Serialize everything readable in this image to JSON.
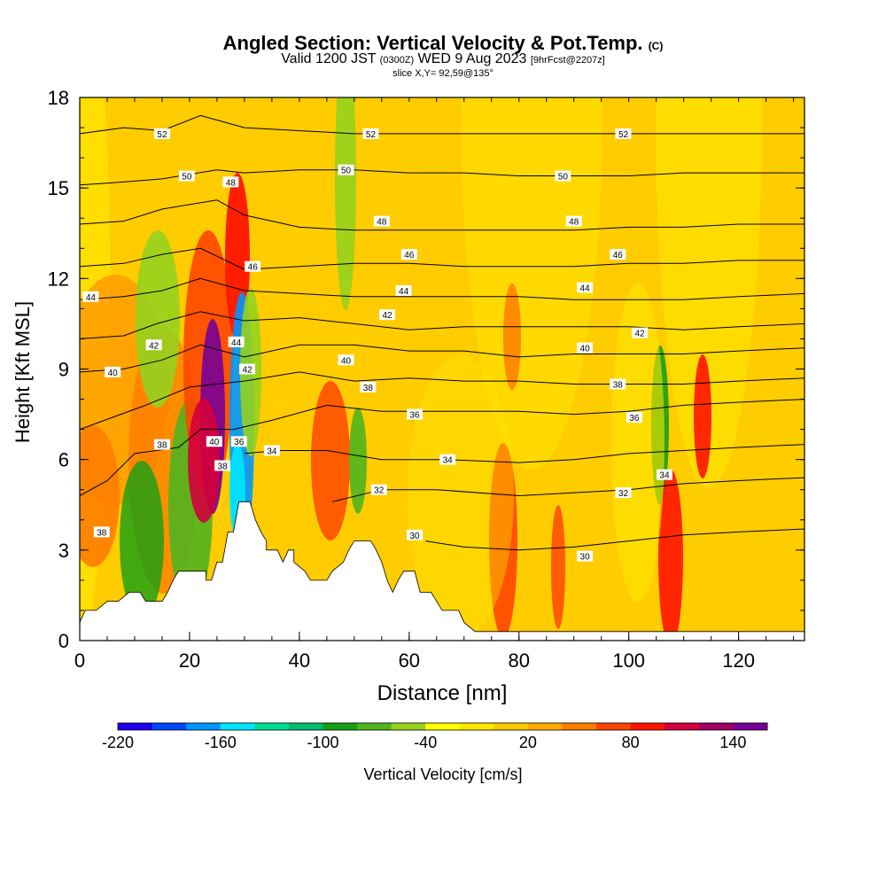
{
  "title": {
    "main": "Angled Section: Vertical Velocity & Pot.Temp.",
    "main_tag": "(C)",
    "valid_prefix": "Valid 1200 JST",
    "valid_utc": "(0300Z)",
    "valid_date": "WED 9 Aug 2023",
    "forecast": "[9hrFcst@2207z]",
    "slice": "slice X,Y= 92,59@135°"
  },
  "chart_data": {
    "type": "heatmap",
    "xlabel": "Distance [nm]",
    "ylabel": "Height [Kft MSL]",
    "xlim": [
      0,
      132
    ],
    "ylim": [
      0,
      18
    ],
    "xticks": [
      0,
      20,
      40,
      60,
      80,
      100,
      120
    ],
    "yticks": [
      0,
      3,
      6,
      9,
      12,
      15,
      18
    ],
    "colorbar": {
      "label": "Vertical Velocity [cm/s]",
      "min": -220,
      "max": 160,
      "ticks": [
        -220,
        -160,
        -100,
        -40,
        20,
        80,
        140
      ],
      "colors": [
        "#1e00f0",
        "#0046ff",
        "#0096ff",
        "#00e6ff",
        "#00dc96",
        "#00be6e",
        "#14a014",
        "#50b41e",
        "#96d21e",
        "#ffff00",
        "#ffe600",
        "#ffc800",
        "#ffaa00",
        "#ff7d00",
        "#ff4600",
        "#ff1400",
        "#d2003c",
        "#a00064",
        "#780096"
      ]
    },
    "isentrope_labels": [
      "52",
      "50",
      "48",
      "46",
      "44",
      "42",
      "40",
      "38",
      "36",
      "34",
      "32",
      "30"
    ],
    "terrain_kft": [
      [
        0,
        0.6
      ],
      [
        1,
        1
      ],
      [
        3,
        1
      ],
      [
        5,
        1.3
      ],
      [
        7,
        1.3
      ],
      [
        9,
        1.6
      ],
      [
        11,
        1.6
      ],
      [
        12,
        1.3
      ],
      [
        15,
        1.3
      ],
      [
        16,
        1.6
      ],
      [
        17,
        2
      ],
      [
        18,
        2.3
      ],
      [
        23,
        2.3
      ],
      [
        23,
        2
      ],
      [
        24,
        2
      ],
      [
        25,
        2.6
      ],
      [
        26,
        2.6
      ],
      [
        27,
        3.6
      ],
      [
        28,
        3.6
      ],
      [
        29,
        4.6
      ],
      [
        31,
        4.6
      ],
      [
        32,
        4
      ],
      [
        33,
        3.6
      ],
      [
        34,
        3.3
      ],
      [
        34,
        3
      ],
      [
        36,
        3
      ],
      [
        37,
        2.6
      ],
      [
        38,
        3
      ],
      [
        39,
        3
      ],
      [
        39,
        2.6
      ],
      [
        41,
        2.3
      ],
      [
        42,
        2
      ],
      [
        45,
        2
      ],
      [
        46,
        2.3
      ],
      [
        48,
        2.6
      ],
      [
        49,
        3
      ],
      [
        50,
        3.3
      ],
      [
        53,
        3.3
      ],
      [
        54,
        3
      ],
      [
        55,
        2.6
      ],
      [
        56,
        2
      ],
      [
        57,
        1.6
      ],
      [
        58,
        2
      ],
      [
        59,
        2.3
      ],
      [
        61,
        2.3
      ],
      [
        62,
        1.6
      ],
      [
        64,
        1.6
      ],
      [
        65,
        1.3
      ],
      [
        66,
        1
      ],
      [
        69,
        1
      ],
      [
        70,
        0.6
      ],
      [
        72,
        0.3
      ],
      [
        132,
        0.3
      ],
      [
        132,
        0
      ],
      [
        0,
        0
      ]
    ],
    "isentropes": [
      {
        "label": "30",
        "points": [
          [
            63,
            3.3
          ],
          [
            70,
            3.1
          ],
          [
            80,
            3.0
          ],
          [
            90,
            3.1
          ],
          [
            100,
            3.3
          ],
          [
            110,
            3.5
          ],
          [
            120,
            3.6
          ],
          [
            132,
            3.7
          ]
        ]
      },
      {
        "label": "32",
        "points": [
          [
            46,
            4.6
          ],
          [
            55,
            5.0
          ],
          [
            65,
            5.0
          ],
          [
            80,
            4.8
          ],
          [
            90,
            4.9
          ],
          [
            100,
            5.0
          ],
          [
            110,
            5.2
          ],
          [
            120,
            5.3
          ],
          [
            132,
            5.4
          ]
        ]
      },
      {
        "label": "34",
        "points": [
          [
            30,
            6.2
          ],
          [
            36,
            6.3
          ],
          [
            45,
            6.3
          ],
          [
            55,
            6.0
          ],
          [
            67,
            6.0
          ],
          [
            80,
            5.9
          ],
          [
            90,
            6.0
          ],
          [
            100,
            6.2
          ],
          [
            110,
            6.3
          ],
          [
            120,
            6.4
          ],
          [
            132,
            6.5
          ]
        ]
      },
      {
        "label": "36",
        "points": [
          [
            0,
            4.8
          ],
          [
            5,
            5.3
          ],
          [
            10,
            6.2
          ],
          [
            18,
            6.4
          ],
          [
            22,
            7.0
          ],
          [
            28,
            7.0
          ],
          [
            35,
            7.3
          ],
          [
            45,
            7.8
          ],
          [
            55,
            7.6
          ],
          [
            65,
            7.6
          ],
          [
            80,
            7.6
          ],
          [
            90,
            7.5
          ],
          [
            100,
            7.6
          ],
          [
            110,
            7.8
          ],
          [
            120,
            7.9
          ],
          [
            132,
            8.0
          ]
        ]
      },
      {
        "label": "38",
        "points": [
          [
            0,
            7.0
          ],
          [
            6,
            7.4
          ],
          [
            12,
            7.8
          ],
          [
            20,
            8.4
          ],
          [
            30,
            8.6
          ],
          [
            40,
            8.9
          ],
          [
            50,
            8.6
          ],
          [
            60,
            8.7
          ],
          [
            70,
            8.6
          ],
          [
            80,
            8.6
          ],
          [
            90,
            8.5
          ],
          [
            100,
            8.5
          ],
          [
            110,
            8.5
          ],
          [
            120,
            8.6
          ],
          [
            132,
            8.7
          ]
        ]
      },
      {
        "label": "40",
        "points": [
          [
            0,
            8.9
          ],
          [
            8,
            9.0
          ],
          [
            15,
            9.3
          ],
          [
            22,
            9.8
          ],
          [
            30,
            9.4
          ],
          [
            40,
            9.8
          ],
          [
            50,
            9.8
          ],
          [
            60,
            9.6
          ],
          [
            70,
            9.6
          ],
          [
            80,
            9.4
          ],
          [
            90,
            9.5
          ],
          [
            100,
            9.5
          ],
          [
            110,
            9.5
          ],
          [
            120,
            9.6
          ],
          [
            132,
            9.7
          ]
        ]
      },
      {
        "label": "42",
        "points": [
          [
            0,
            10.0
          ],
          [
            8,
            10.1
          ],
          [
            14,
            10.5
          ],
          [
            22,
            10.9
          ],
          [
            30,
            10.6
          ],
          [
            40,
            10.7
          ],
          [
            50,
            10.5
          ],
          [
            60,
            10.3
          ],
          [
            70,
            10.4
          ],
          [
            80,
            10.4
          ],
          [
            90,
            10.4
          ],
          [
            100,
            10.4
          ],
          [
            110,
            10.3
          ],
          [
            120,
            10.4
          ],
          [
            132,
            10.5
          ]
        ]
      },
      {
        "label": "44",
        "points": [
          [
            0,
            11.3
          ],
          [
            8,
            11.4
          ],
          [
            15,
            11.6
          ],
          [
            22,
            12.0
          ],
          [
            30,
            11.6
          ],
          [
            40,
            11.5
          ],
          [
            50,
            11.4
          ],
          [
            60,
            11.4
          ],
          [
            70,
            11.4
          ],
          [
            80,
            11.4
          ],
          [
            90,
            11.3
          ],
          [
            100,
            11.3
          ],
          [
            110,
            11.3
          ],
          [
            120,
            11.4
          ],
          [
            132,
            11.5
          ]
        ]
      },
      {
        "label": "46",
        "points": [
          [
            0,
            12.4
          ],
          [
            8,
            12.5
          ],
          [
            15,
            12.8
          ],
          [
            22,
            13.0
          ],
          [
            30,
            12.3
          ],
          [
            40,
            12.4
          ],
          [
            50,
            12.5
          ],
          [
            60,
            12.5
          ],
          [
            70,
            12.4
          ],
          [
            80,
            12.4
          ],
          [
            90,
            12.4
          ],
          [
            100,
            12.5
          ],
          [
            110,
            12.5
          ],
          [
            120,
            12.6
          ],
          [
            132,
            12.6
          ]
        ]
      },
      {
        "label": "48",
        "points": [
          [
            0,
            13.8
          ],
          [
            8,
            13.9
          ],
          [
            15,
            14.3
          ],
          [
            25,
            14.6
          ],
          [
            30,
            14.1
          ],
          [
            40,
            13.7
          ],
          [
            50,
            13.6
          ],
          [
            60,
            13.6
          ],
          [
            70,
            13.6
          ],
          [
            80,
            13.6
          ],
          [
            90,
            13.6
          ],
          [
            100,
            13.7
          ],
          [
            110,
            13.7
          ],
          [
            120,
            13.8
          ],
          [
            132,
            13.8
          ]
        ]
      },
      {
        "label": "50",
        "points": [
          [
            0,
            15.1
          ],
          [
            8,
            15.2
          ],
          [
            15,
            15.3
          ],
          [
            25,
            15.6
          ],
          [
            30,
            15.5
          ],
          [
            40,
            15.6
          ],
          [
            50,
            15.6
          ],
          [
            60,
            15.5
          ],
          [
            70,
            15.5
          ],
          [
            80,
            15.4
          ],
          [
            90,
            15.4
          ],
          [
            100,
            15.4
          ],
          [
            110,
            15.5
          ],
          [
            120,
            15.5
          ],
          [
            132,
            15.5
          ]
        ]
      },
      {
        "label": "52",
        "points": [
          [
            0,
            16.8
          ],
          [
            8,
            17.0
          ],
          [
            15,
            16.9
          ],
          [
            22,
            17.4
          ],
          [
            30,
            17.0
          ],
          [
            40,
            16.9
          ],
          [
            50,
            16.8
          ],
          [
            60,
            16.8
          ],
          [
            70,
            16.8
          ],
          [
            80,
            16.8
          ],
          [
            90,
            16.8
          ],
          [
            100,
            16.8
          ],
          [
            110,
            16.8
          ],
          [
            120,
            16.8
          ],
          [
            132,
            16.8
          ]
        ]
      }
    ],
    "label_positions": [
      {
        "label": "52",
        "x": 15,
        "y": 16.8
      },
      {
        "label": "52",
        "x": 53,
        "y": 16.8
      },
      {
        "label": "52",
        "x": 99,
        "y": 16.8
      },
      {
        "label": "50",
        "x": 19.5,
        "y": 15.4
      },
      {
        "label": "50",
        "x": 48.5,
        "y": 15.6
      },
      {
        "label": "50",
        "x": 88,
        "y": 15.4
      },
      {
        "label": "48",
        "x": 27.5,
        "y": 15.2
      },
      {
        "label": "48",
        "x": 55,
        "y": 13.9
      },
      {
        "label": "48",
        "x": 90,
        "y": 13.9
      },
      {
        "label": "46",
        "x": 31.5,
        "y": 12.4
      },
      {
        "label": "46",
        "x": 60,
        "y": 12.8
      },
      {
        "label": "46",
        "x": 98,
        "y": 12.8
      },
      {
        "label": "44",
        "x": 2,
        "y": 11.4
      },
      {
        "label": "44",
        "x": 59,
        "y": 11.6
      },
      {
        "label": "44",
        "x": 92,
        "y": 11.7
      },
      {
        "label": "44",
        "x": 28.5,
        "y": 9.9
      },
      {
        "label": "42",
        "x": 13.5,
        "y": 9.8
      },
      {
        "label": "42",
        "x": 30.5,
        "y": 9.0
      },
      {
        "label": "42",
        "x": 56,
        "y": 10.8
      },
      {
        "label": "42",
        "x": 102,
        "y": 10.2
      },
      {
        "label": "40",
        "x": 6,
        "y": 8.9
      },
      {
        "label": "40",
        "x": 48.5,
        "y": 9.3
      },
      {
        "label": "40",
        "x": 92,
        "y": 9.7
      },
      {
        "label": "40",
        "x": 24.5,
        "y": 6.6
      },
      {
        "label": "38",
        "x": 15,
        "y": 6.5
      },
      {
        "label": "38",
        "x": 52.5,
        "y": 8.4
      },
      {
        "label": "38",
        "x": 98,
        "y": 8.5
      },
      {
        "label": "38",
        "x": 26,
        "y": 5.8
      },
      {
        "label": "38",
        "x": 4,
        "y": 3.6
      },
      {
        "label": "36",
        "x": 29,
        "y": 6.6
      },
      {
        "label": "36",
        "x": 61,
        "y": 7.5
      },
      {
        "label": "36",
        "x": 101,
        "y": 7.4
      },
      {
        "label": "34",
        "x": 35,
        "y": 6.3
      },
      {
        "label": "34",
        "x": 67,
        "y": 6.0
      },
      {
        "label": "34",
        "x": 106.5,
        "y": 5.5
      },
      {
        "label": "32",
        "x": 54.5,
        "y": 5.0
      },
      {
        "label": "32",
        "x": 99,
        "y": 4.9
      },
      {
        "label": "30",
        "x": 61,
        "y": 3.5
      },
      {
        "label": "30",
        "x": 92,
        "y": 2.8
      }
    ]
  }
}
